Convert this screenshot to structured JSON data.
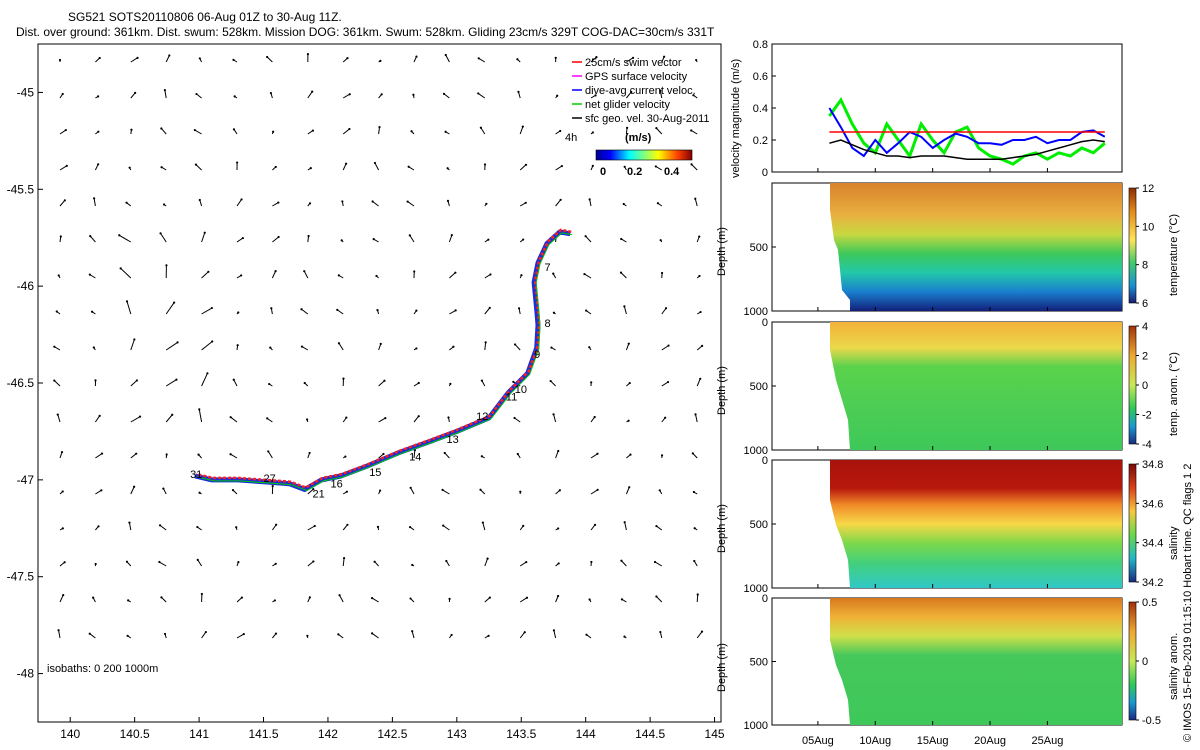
{
  "title": {
    "line1": "SG521 SOTS20110806 06-Aug 01Z to 30-Aug 11Z.",
    "line2": "Dist. over ground: 361km. Dist. swum: 528km. Mission DOG: 361km. Swum: 528km. Gliding 23cm/s 329T COG-DAC=30cm/s 331T"
  },
  "credit": "© IMOS 15-Feb-2019 01:15:10 Hobart time. QC flags 1  2",
  "map": {
    "xticks": [
      "140",
      "140.5",
      "141",
      "141.5",
      "142",
      "142.5",
      "143",
      "143.5",
      "144",
      "144.5",
      "145"
    ],
    "yticks": [
      "-45",
      "-45.5",
      "-46",
      "-46.5",
      "-47",
      "-47.5",
      "-48"
    ],
    "xlim": [
      139.75,
      145.05
    ],
    "ylim": [
      -48.25,
      -44.75
    ],
    "isobaths": "isobaths: 0   200   1000m",
    "legend": [
      {
        "label": "25cm/s swim vector",
        "color": "#ff0000"
      },
      {
        "label": "GPS surface velocity",
        "color": "#ff00ff"
      },
      {
        "label": "dive-avg current veloc.",
        "color": "#0000ff"
      },
      {
        "label": "net glider velocity",
        "color": "#00cc00"
      },
      {
        "label": "sfc geo. vel. 30-Aug-2011",
        "color": "#000000"
      }
    ],
    "colorbar": {
      "label": "(m/s)",
      "ticks": [
        "0",
        "0.2",
        "0.4"
      ],
      "extra": "4h"
    },
    "track": [
      [
        143.88,
        -45.73
      ],
      [
        143.8,
        -45.72
      ],
      [
        143.7,
        -45.78
      ],
      [
        143.63,
        -45.88
      ],
      [
        143.6,
        -45.98
      ],
      [
        143.62,
        -46.12
      ],
      [
        143.63,
        -46.2
      ],
      [
        143.62,
        -46.32
      ],
      [
        143.55,
        -46.45
      ],
      [
        143.4,
        -46.55
      ],
      [
        143.25,
        -46.68
      ],
      [
        143.0,
        -46.75
      ],
      [
        142.8,
        -46.8
      ],
      [
        142.55,
        -46.86
      ],
      [
        142.3,
        -46.93
      ],
      [
        142.1,
        -46.98
      ],
      [
        141.95,
        -47.0
      ],
      [
        141.82,
        -47.05
      ],
      [
        141.7,
        -47.02
      ],
      [
        141.5,
        -47.01
      ],
      [
        141.3,
        -47.0
      ],
      [
        141.1,
        -47.0
      ],
      [
        140.97,
        -46.98
      ]
    ],
    "track_labels": [
      {
        "text": "7",
        "x": 143.68,
        "y": -45.9
      },
      {
        "text": "8",
        "x": 143.68,
        "y": -46.19
      },
      {
        "text": "9",
        "x": 143.6,
        "y": -46.35
      },
      {
        "text": "10",
        "x": 143.45,
        "y": -46.53
      },
      {
        "text": "11",
        "x": 143.38,
        "y": -46.57
      },
      {
        "text": "12",
        "x": 143.15,
        "y": -46.67
      },
      {
        "text": "13",
        "x": 142.92,
        "y": -46.79
      },
      {
        "text": "14",
        "x": 142.63,
        "y": -46.88
      },
      {
        "text": "15",
        "x": 142.32,
        "y": -46.96
      },
      {
        "text": "16",
        "x": 142.02,
        "y": -47.02
      },
      {
        "text": "21",
        "x": 141.88,
        "y": -47.07
      },
      {
        "text": "27",
        "x": 141.5,
        "y": -46.99
      },
      {
        "text": "31",
        "x": 140.93,
        "y": -46.97
      }
    ]
  },
  "panels": {
    "velocity": {
      "ylabel": "velocity magnitude (m/s)",
      "yticks": [
        "0",
        "0.2",
        "0.4",
        "0.6",
        "0.8"
      ],
      "ylim": [
        0,
        0.8
      ]
    },
    "temperature": {
      "ylabel": "Depth (m)",
      "cblabel": "temperature (°C)",
      "cbticks": [
        "12",
        "10",
        "8",
        "6"
      ],
      "yticks": [
        "500",
        "1000"
      ]
    },
    "temp_anom": {
      "ylabel": "Depth (m)",
      "cblabel": "temp. anom. (°C)",
      "cbticks": [
        "4",
        "2",
        "0",
        "-2",
        "-4"
      ],
      "yticks": [
        "0",
        "500",
        "1000"
      ]
    },
    "salinity": {
      "ylabel": "Depth (m)",
      "cblabel": "salinity",
      "cbticks": [
        "34.8",
        "34.6",
        "34.4",
        "34.2"
      ],
      "yticks": [
        "0",
        "500",
        "1000"
      ]
    },
    "sal_anom": {
      "ylabel": "Depth (m)",
      "cblabel": "salinity anom.",
      "cbticks": [
        "0.5",
        "0",
        "-0.5"
      ],
      "yticks": [
        "0",
        "500",
        "1000"
      ]
    },
    "xticks": [
      "05Aug",
      "10Aug",
      "15Aug",
      "20Aug",
      "25Aug"
    ]
  },
  "chart_data": [
    {
      "type": "scatter",
      "title": "SG521 SOTS20110806 06-Aug 01Z to 30-Aug 11Z.",
      "x": [
        143.88,
        143.6,
        143.63,
        143.4,
        143.0,
        142.55,
        142.1,
        141.82,
        141.5,
        140.97
      ],
      "y": [
        -45.73,
        -45.98,
        -46.2,
        -46.55,
        -46.75,
        -46.86,
        -46.98,
        -47.05,
        -47.01,
        -46.98
      ],
      "xlim": [
        139.75,
        145.05
      ],
      "ylim": [
        -48.25,
        -44.75
      ]
    },
    {
      "type": "line",
      "ylabel": "velocity magnitude (m/s)",
      "ylim": [
        0,
        0.8
      ],
      "x_days": [
        6,
        7,
        8,
        9,
        10,
        11,
        12,
        13,
        14,
        15,
        16,
        17,
        18,
        19,
        20,
        21,
        22,
        23,
        24,
        25,
        26,
        27,
        28,
        29,
        30
      ],
      "series": [
        {
          "name": "25cm/s swim vector",
          "values": [
            0.25,
            0.25,
            0.25,
            0.25,
            0.25,
            0.25,
            0.25,
            0.25,
            0.25,
            0.25,
            0.25,
            0.25,
            0.25,
            0.25,
            0.25,
            0.25,
            0.25,
            0.25,
            0.25,
            0.25,
            0.25,
            0.25,
            0.25,
            0.25,
            0.25
          ]
        },
        {
          "name": "dive-avg current veloc.",
          "values": [
            0.4,
            0.28,
            0.15,
            0.1,
            0.2,
            0.12,
            0.18,
            0.25,
            0.22,
            0.15,
            0.2,
            0.24,
            0.22,
            0.18,
            0.18,
            0.17,
            0.2,
            0.2,
            0.22,
            0.18,
            0.2,
            0.2,
            0.25,
            0.26,
            0.22
          ]
        },
        {
          "name": "net glider velocity",
          "values": [
            0.35,
            0.45,
            0.3,
            0.18,
            0.12,
            0.3,
            0.2,
            0.1,
            0.3,
            0.2,
            0.12,
            0.25,
            0.28,
            0.15,
            0.1,
            0.08,
            0.05,
            0.1,
            0.12,
            0.08,
            0.12,
            0.1,
            0.15,
            0.12,
            0.18
          ]
        },
        {
          "name": "sfc geo. vel. 30-Aug-2011",
          "values": [
            0.18,
            0.2,
            0.17,
            0.14,
            0.12,
            0.1,
            0.1,
            0.09,
            0.1,
            0.1,
            0.1,
            0.09,
            0.08,
            0.08,
            0.08,
            0.08,
            0.09,
            0.1,
            0.11,
            0.13,
            0.15,
            0.17,
            0.19,
            0.2,
            0.19
          ]
        }
      ]
    }
  ]
}
